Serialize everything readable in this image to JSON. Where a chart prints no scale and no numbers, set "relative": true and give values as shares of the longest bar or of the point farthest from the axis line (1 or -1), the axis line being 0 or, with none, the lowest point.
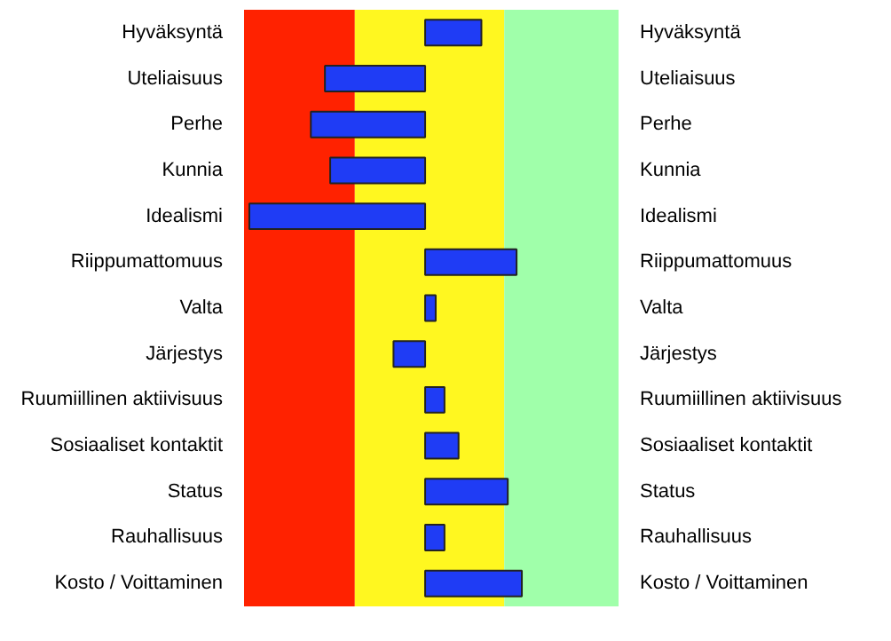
{
  "chart_data": {
    "type": "bar",
    "orientation": "horizontal",
    "relative": true,
    "categories": [
      "Hyväksyntä",
      "Uteliaisuus",
      "Perhe",
      "Kunnia",
      "Idealismi",
      "Riippumattomuus",
      "Valta",
      "Järjestys",
      "Ruumiillinen aktiivisuus",
      "Sosiaaliset kontaktit",
      "Status",
      "Rauhallisuus",
      "Kosto / Voittaminen"
    ],
    "values": [
      0.32,
      -0.57,
      -0.65,
      -0.54,
      -1,
      0.52,
      0.06,
      -0.18,
      0.11,
      0.19,
      0.47,
      0.11,
      0.55
    ],
    "color": "#1f3cf5",
    "bands": [
      {
        "axis": "x",
        "from": -1.03,
        "to": -0.4,
        "color": "#ff2200"
      },
      {
        "axis": "x",
        "from": -0.4,
        "to": 0.45,
        "color": "#fff720"
      },
      {
        "axis": "x",
        "from": 0.45,
        "to": 1.1,
        "color": "#a0ffaa"
      }
    ]
  }
}
